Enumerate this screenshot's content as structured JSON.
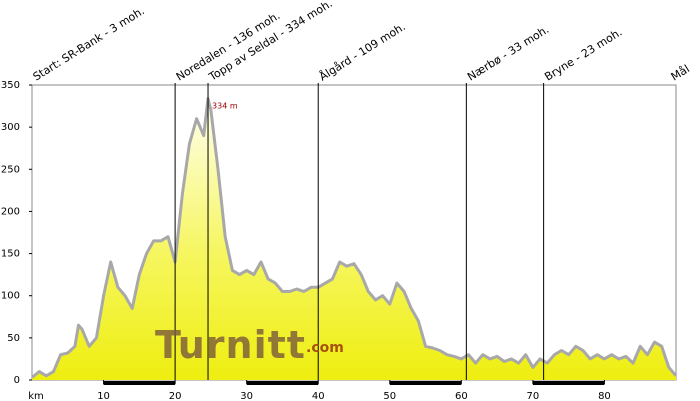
{
  "chart_data": {
    "type": "area",
    "x_label": "km",
    "x": [
      0,
      1,
      2,
      3,
      4,
      5,
      6,
      6.5,
      7,
      8,
      9,
      10,
      11,
      12,
      13,
      14,
      15,
      16,
      17,
      18,
      19,
      20,
      21,
      22,
      23,
      24,
      24.6,
      25,
      26,
      27,
      28,
      29,
      30,
      31,
      32,
      33,
      34,
      35,
      36,
      37,
      38,
      39,
      40,
      41,
      42,
      43,
      44,
      45,
      46,
      47,
      48,
      49,
      50,
      51,
      52,
      53,
      54,
      55,
      56,
      57,
      58,
      59,
      60,
      61,
      62,
      63,
      64,
      65,
      66,
      67,
      68,
      69,
      70,
      71,
      72,
      73,
      74,
      75,
      76,
      77,
      78,
      79,
      80,
      81,
      82,
      83,
      84,
      85,
      86,
      87,
      88,
      89,
      90
    ],
    "values": [
      3,
      10,
      5,
      10,
      30,
      32,
      40,
      65,
      60,
      40,
      50,
      100,
      140,
      110,
      100,
      85,
      125,
      150,
      165,
      165,
      170,
      140,
      220,
      280,
      310,
      290,
      334,
      320,
      250,
      170,
      130,
      125,
      130,
      125,
      140,
      120,
      115,
      105,
      105,
      108,
      105,
      110,
      110,
      115,
      120,
      140,
      135,
      138,
      125,
      105,
      95,
      100,
      90,
      115,
      105,
      85,
      70,
      40,
      38,
      35,
      30,
      28,
      25,
      30,
      20,
      30,
      25,
      28,
      22,
      25,
      20,
      30,
      15,
      25,
      20,
      30,
      35,
      30,
      40,
      35,
      25,
      30,
      25,
      30,
      25,
      28,
      20,
      40,
      30,
      45,
      40,
      15,
      5
    ],
    "color": "#f0f020",
    "line_color": "#a8a8a8",
    "xlim": [
      0,
      90
    ],
    "xticks": [
      10,
      20,
      30,
      40,
      50,
      60,
      70,
      80
    ],
    "ylim": [
      0,
      350
    ],
    "yticks": [
      0,
      50,
      100,
      150,
      200,
      250,
      300,
      350
    ],
    "markers": [
      {
        "label": "Start: SR-Bank - 3 moh.",
        "x": 0
      },
      {
        "label": "Noredalen - 136 moh.",
        "x": 20
      },
      {
        "label": "Topp av Seldal - 334 moh.",
        "x": 24.6
      },
      {
        "label": "Ålgård - 109 moh.",
        "x": 40
      },
      {
        "label": "Nærbø - 33 moh.",
        "x": 60.7
      },
      {
        "label": "Bryne - 23 moh.",
        "x": 71.5
      },
      {
        "label": "Mål",
        "x": 90
      }
    ],
    "peak_label": "334 m",
    "watermark": [
      "Turnitt",
      ".com"
    ]
  }
}
